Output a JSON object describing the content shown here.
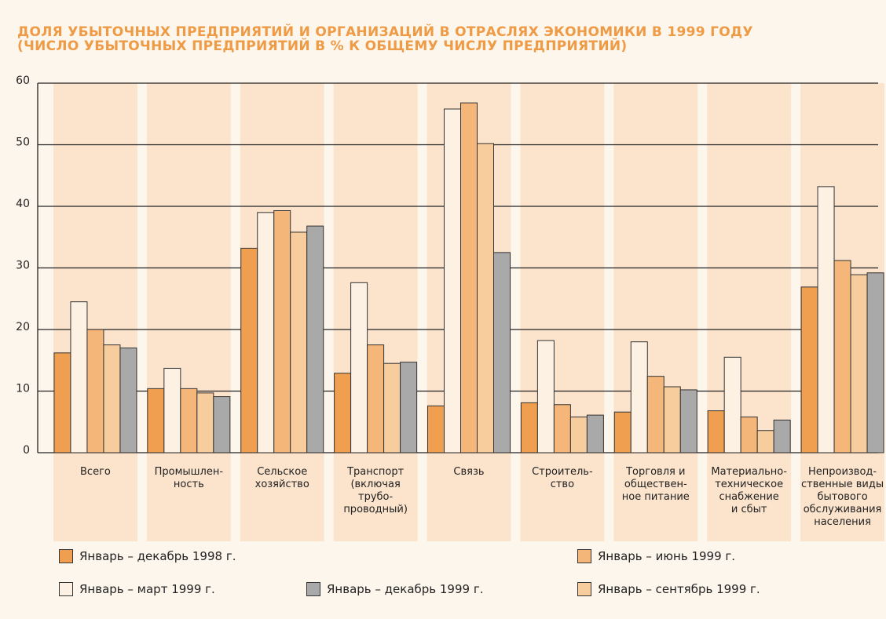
{
  "chart_data": {
    "type": "bar",
    "title": "ДОЛЯ УБЫТОЧНЫХ ПРЕДПРИЯТИЙ И ОРГАНИЗАЦИЙ В ОТРАСЛЯХ ЭКОНОМИКИ В 1999 ГОДУ\n(ЧИСЛО УБЫТОЧНЫХ ПРЕДПРИЯТИЙ В % К ОБЩЕМУ ЧИСЛУ ПРЕДПРИЯТИЙ)",
    "categories": [
      "Всего",
      "Промышлен-\nность",
      "Сельское\nхозяйство",
      "Транспорт\n(включая\nтрубо-\nпроводный)",
      "Связь",
      "Строитель-\nство",
      "Торговля и\nобществен-\nное питание",
      "Материально-\nтехническое\nснабжение\nи сбыт",
      "Непроизвод-\nственные виды\nбытового\nобслуживания\nнаселения"
    ],
    "series": [
      {
        "name": "Январь – декабрь 1998 г.",
        "color": "#ef9f4f",
        "values": [
          16.2,
          10.4,
          33.2,
          12.9,
          7.6,
          8.1,
          6.6,
          6.8,
          26.9
        ]
      },
      {
        "name": "Январь – март 1999 г.",
        "color": "#fdf1e3",
        "values": [
          24.5,
          13.7,
          39,
          27.6,
          55.8,
          18.2,
          18,
          15.5,
          43.2
        ]
      },
      {
        "name": "Январь – июнь 1999 г.",
        "color": "#f4b679",
        "values": [
          20,
          10.4,
          39.3,
          17.5,
          56.8,
          7.8,
          12.4,
          5.8,
          31.2
        ]
      },
      {
        "name": "Январь – сентябрь 1999 г.",
        "color": "#f8cd9d",
        "values": [
          17.5,
          9.7,
          35.8,
          14.5,
          50.2,
          5.8,
          10.7,
          3.6,
          28.9
        ]
      },
      {
        "name": "Январь – декабрь 1999 г.",
        "color": "#a9a9a9",
        "values": [
          17,
          9.1,
          36.8,
          14.7,
          32.5,
          6.1,
          10.2,
          5.3,
          29.2
        ]
      }
    ],
    "ylim": [
      0,
      60
    ],
    "yticks": [
      0,
      10,
      20,
      30,
      40,
      50,
      60
    ],
    "grid": true
  }
}
